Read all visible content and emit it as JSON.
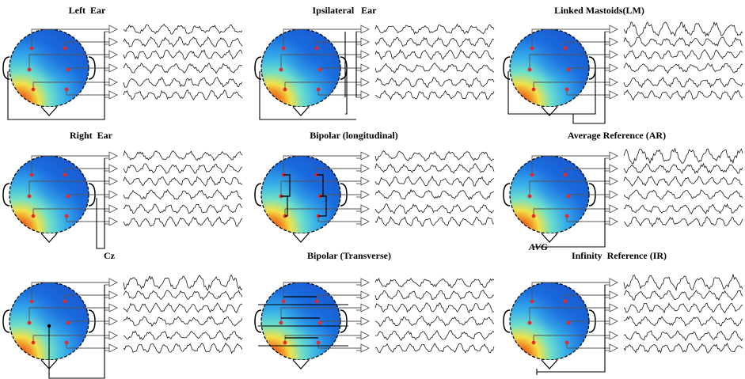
{
  "colors": {
    "scalp_high": "#d01a10",
    "scalp_mid": "#f0e24a",
    "scalp_low": "#1a6fe0",
    "electrode": "#e52b2b",
    "wire": "#000000",
    "trace": "#1a1a1a"
  },
  "panels": [
    {
      "id": "left-ear",
      "title": "Left  Ear",
      "reference": "left-ear"
    },
    {
      "id": "ipsilateral-ear",
      "title": "Ipsilateral   Ear",
      "reference": "ipsilateral"
    },
    {
      "id": "linked-mastoids",
      "title": "Linked Mastoids(LM)",
      "reference": "linked"
    },
    {
      "id": "right-ear",
      "title": "Right  Ear",
      "reference": "right-ear"
    },
    {
      "id": "bipolar-longitudinal",
      "title": "Bipolar (longitudinal)",
      "reference": "bipolar-long"
    },
    {
      "id": "average-reference",
      "title": "Average Reference (AR)",
      "reference": "average",
      "ref_label": "AVG"
    },
    {
      "id": "cz",
      "title": "Cz",
      "reference": "cz"
    },
    {
      "id": "bipolar-transverse",
      "title": "Bipolar (Transverse)",
      "reference": "bipolar-trans"
    },
    {
      "id": "infinity-reference",
      "title": "Infinity  Reference (IR)",
      "reference": "infinity"
    }
  ]
}
